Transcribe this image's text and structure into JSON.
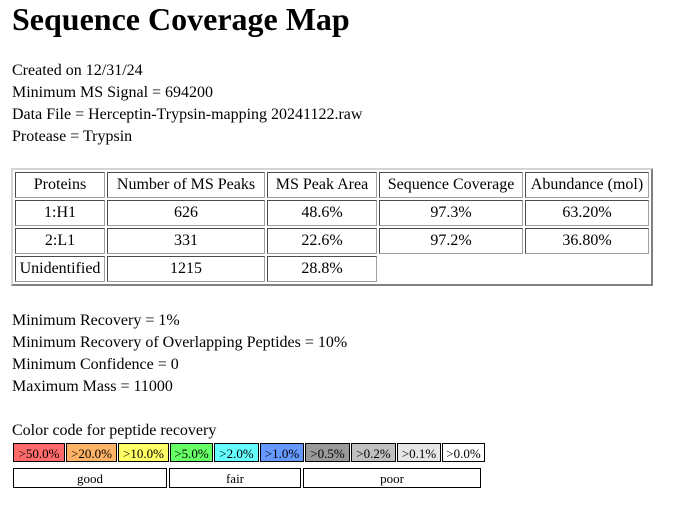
{
  "page": {
    "title": "Sequence Coverage Map"
  },
  "info": {
    "created": "Created on 12/31/24",
    "min_signal": "Minimum MS Signal = 694200",
    "data_file": "Data File = Herceptin-Trypsin-mapping 20241122.raw",
    "protease": "Protease = Trypsin"
  },
  "table": {
    "headers": [
      "Proteins",
      "Number of MS Peaks",
      "MS Peak Area",
      "Sequence Coverage",
      "Abundance (mol)"
    ],
    "rows": [
      [
        "1:H1",
        "626",
        "48.6%",
        "97.3%",
        "63.20%"
      ],
      [
        "2:L1",
        "331",
        "22.6%",
        "97.2%",
        "36.80%"
      ],
      [
        "Unidentified",
        "1215",
        "28.8%",
        "",
        ""
      ]
    ]
  },
  "params": {
    "min_recovery": "Minimum Recovery = 1%",
    "min_overlap": "Minimum Recovery of Overlapping Peptides = 10%",
    "min_confidence": "Minimum Confidence = 0",
    "max_mass": "Maximum Mass = 11000"
  },
  "legend": {
    "title": "Color code for peptide recovery",
    "swatches": [
      {
        "label": ">50.0%",
        "color": "#ff6b6b"
      },
      {
        "label": ">20.0%",
        "color": "#ffb366"
      },
      {
        "label": ">10.0%",
        "color": "#ffff66"
      },
      {
        "label": ">5.0%",
        "color": "#66ff66"
      },
      {
        "label": ">2.0%",
        "color": "#66ffff"
      },
      {
        "label": ">1.0%",
        "color": "#6699ff"
      },
      {
        "label": ">0.5%",
        "color": "#999999"
      },
      {
        "label": ">0.2%",
        "color": "#c0c0c0"
      },
      {
        "label": ">0.1%",
        "color": "#e6e6e6"
      },
      {
        "label": ">0.0%",
        "color": "#ffffff"
      }
    ],
    "groups": {
      "good": "good",
      "fair": "fair",
      "poor": "poor"
    }
  }
}
